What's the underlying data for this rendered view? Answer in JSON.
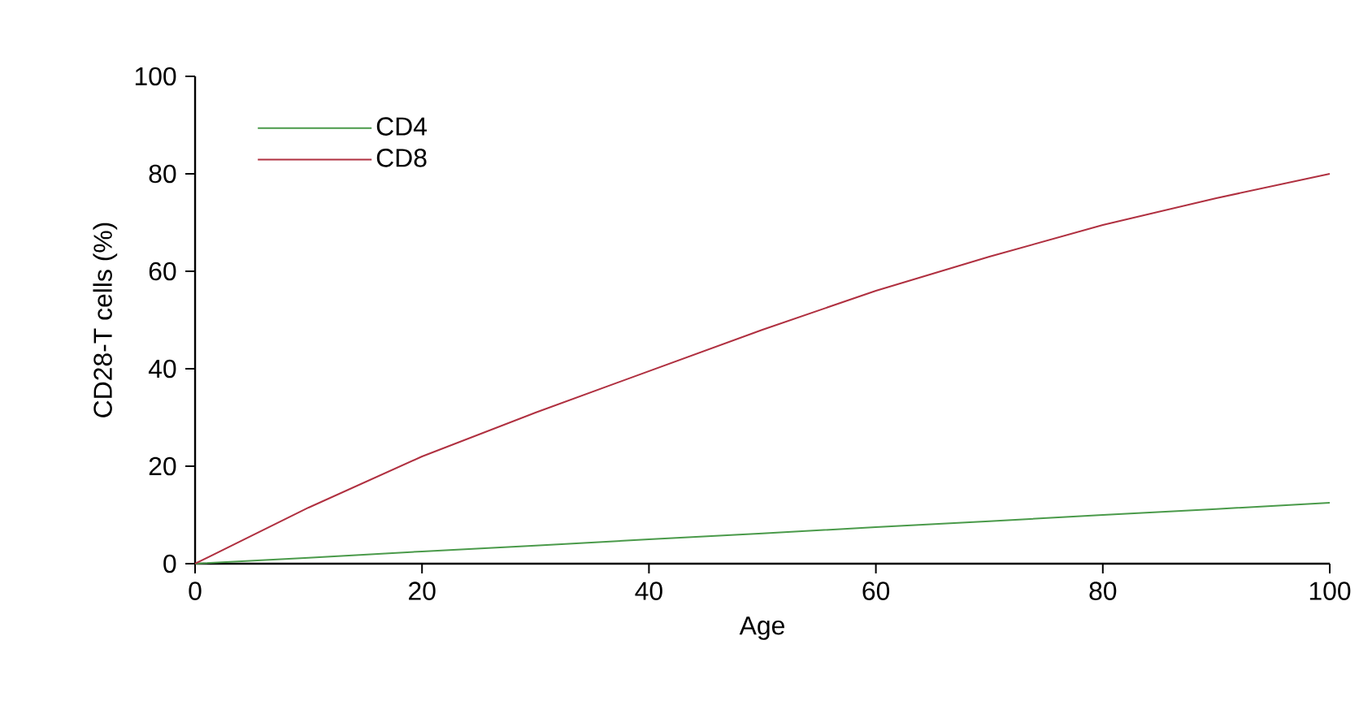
{
  "chart_data": {
    "type": "line",
    "xlabel": "Age",
    "ylabel": "CD28-T cells (%)",
    "x": [
      0,
      10,
      20,
      30,
      40,
      50,
      60,
      70,
      80,
      90,
      100
    ],
    "series": [
      {
        "name": "CD4",
        "color": "#4a9a4a",
        "values": [
          0,
          1.2,
          2.5,
          3.7,
          5,
          6.2,
          7.5,
          8.7,
          10,
          11.2,
          12.5
        ]
      },
      {
        "name": "CD8",
        "color": "#b03040",
        "values": [
          0,
          11.5,
          22,
          31,
          39.5,
          48,
          56,
          63,
          69.5,
          75,
          80
        ]
      }
    ],
    "xlim": [
      0,
      100
    ],
    "ylim": [
      0,
      100
    ],
    "xticks": [
      0,
      20,
      40,
      60,
      80,
      100
    ],
    "yticks": [
      0,
      20,
      40,
      60,
      80,
      100
    ],
    "legend": "top left",
    "grid": false,
    "marker": "none",
    "line_style": "solid"
  }
}
